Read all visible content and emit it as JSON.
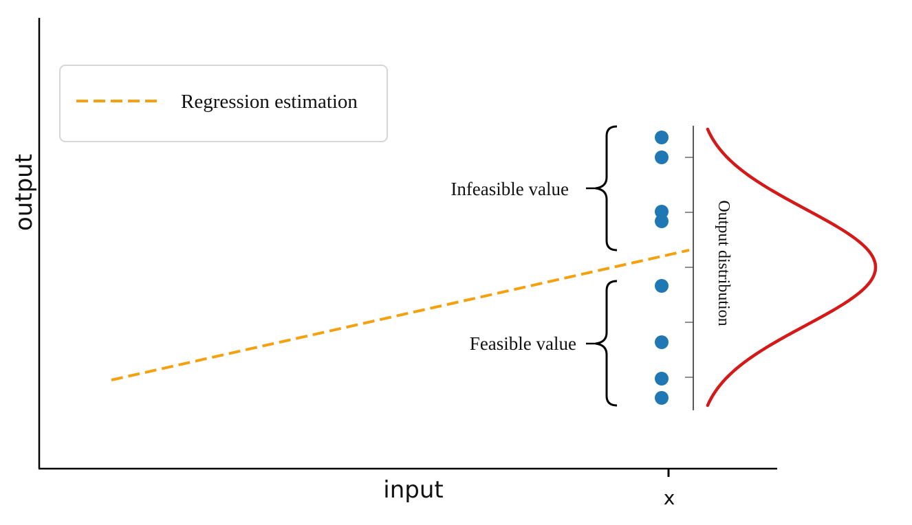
{
  "axes": {
    "x_label": "input",
    "y_label": "output",
    "x_tick_label": "x"
  },
  "legend": {
    "entries": [
      {
        "label": "Regression estimation",
        "color": "#f5a00f",
        "style": "dashed"
      }
    ]
  },
  "annotations": {
    "infeasible": "Infeasible value",
    "feasible": "Feasible value",
    "distribution": "Output distribution"
  },
  "colors": {
    "points": "#1f77b4",
    "regression_line": "#f5a00f",
    "distribution_curve": "#d41919",
    "axis": "#000000"
  }
}
